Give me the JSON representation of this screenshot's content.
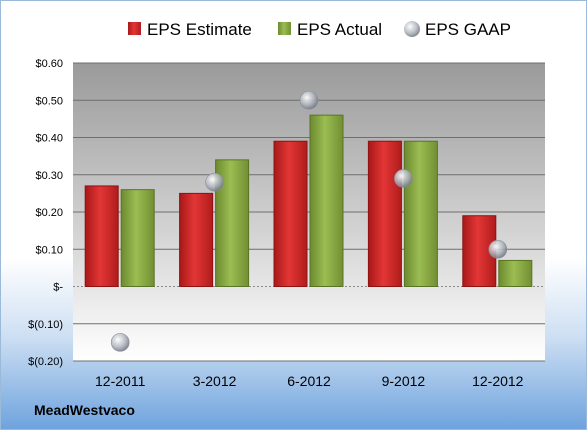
{
  "company": "MeadWestvaco",
  "chart_data": {
    "type": "bar",
    "categories": [
      "12-2011",
      "3-2012",
      "6-2012",
      "9-2012",
      "12-2012"
    ],
    "series": [
      {
        "name": "EPS Estimate",
        "kind": "bar",
        "color": "#d42a2a",
        "values": [
          0.27,
          0.25,
          0.39,
          0.39,
          0.19
        ]
      },
      {
        "name": "EPS Actual",
        "kind": "bar",
        "color": "#8cad46",
        "values": [
          0.26,
          0.34,
          0.46,
          0.39,
          0.07
        ]
      },
      {
        "name": "EPS GAAP",
        "kind": "marker",
        "color": "#b4b9c2",
        "values": [
          -0.15,
          0.28,
          0.5,
          0.29,
          0.1
        ]
      }
    ],
    "ylim": [
      -0.2,
      0.6
    ],
    "yticks": [
      0.6,
      0.5,
      0.4,
      0.3,
      0.2,
      0.1,
      0.0,
      -0.1,
      -0.2
    ],
    "ytick_labels": [
      "$0.60",
      "$0.50",
      "$0.40",
      "$0.30",
      "$0.20",
      "$0.10",
      "$-",
      "$(0.10)",
      "$(0.20)"
    ],
    "grid": true,
    "legend_position": "top-center",
    "title": "",
    "xlabel": "",
    "ylabel": ""
  }
}
